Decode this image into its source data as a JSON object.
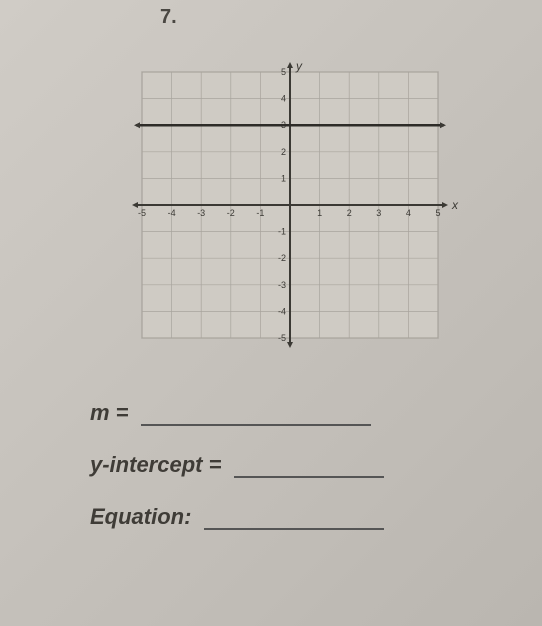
{
  "problem_number": "7.",
  "chart": {
    "type": "line",
    "xlim": [
      -5,
      5
    ],
    "ylim": [
      -5,
      5
    ],
    "tick_step": 1,
    "grid_color": "#8a867f",
    "minor_grid_color": "#a8a49d",
    "axis_color": "#3b3934",
    "background_color": "#cfcbc4",
    "line_y": 3,
    "line_color": "#2e2c28",
    "line_width": 2.5,
    "x_axis_label": "x",
    "y_axis_label": "y",
    "axis_label_fontsize": 12,
    "tick_fontsize": 9,
    "x_tick_labels": [
      -5,
      -4,
      -3,
      -2,
      -1,
      1,
      2,
      3,
      4,
      5
    ],
    "y_tick_labels": [
      -5,
      -4,
      -3,
      -2,
      -1,
      1,
      2,
      3,
      4,
      5
    ]
  },
  "fields": {
    "m_label": "m = ",
    "m_blank_width": 230,
    "yint_label": "y-intercept = ",
    "yint_blank_width": 150,
    "eq_label": "Equation: ",
    "eq_blank_width": 180
  }
}
